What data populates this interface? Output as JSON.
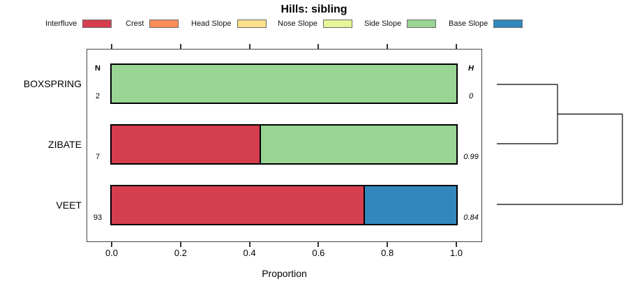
{
  "title": "Hills: sibling",
  "legend": {
    "items": [
      {
        "label": "Interfluve",
        "color": "#D53E4F"
      },
      {
        "label": "Crest",
        "color": "#FC8D59"
      },
      {
        "label": "Head Slope",
        "color": "#FEE08B"
      },
      {
        "label": "Nose Slope",
        "color": "#E6F598"
      },
      {
        "label": "Side Slope",
        "color": "#99D594"
      },
      {
        "label": "Base Slope",
        "color": "#3288BD"
      }
    ]
  },
  "columns": {
    "n_header": "N",
    "h_header": "H"
  },
  "axis": {
    "label": "Proportion",
    "tick_labels": [
      "0.0",
      "0.2",
      "0.4",
      "0.6",
      "0.8",
      "1.0"
    ]
  },
  "chart_data": {
    "type": "bar",
    "orientation": "horizontal-stacked",
    "title": "Hills: sibling",
    "xlabel": "Proportion",
    "xlim": [
      0,
      1
    ],
    "xticks": [
      0,
      0.2,
      0.4,
      0.6,
      0.8,
      1
    ],
    "grid": false,
    "legend_position": "top",
    "categories": [
      "Interfluve",
      "Crest",
      "Head Slope",
      "Nose Slope",
      "Side Slope",
      "Base Slope"
    ],
    "palette": {
      "Interfluve": "#D53E4F",
      "Crest": "#FC8D59",
      "Head Slope": "#FEE08B",
      "Nose Slope": "#E6F598",
      "Side Slope": "#99D594",
      "Base Slope": "#3288BD"
    },
    "rows": [
      {
        "label": "BOXSPRING",
        "n": "2",
        "h": "0",
        "segments": [
          {
            "category": "Side Slope",
            "value": 1.0
          }
        ]
      },
      {
        "label": "ZIBATE",
        "n": "7",
        "h": "0.99",
        "segments": [
          {
            "category": "Interfluve",
            "value": 0.43
          },
          {
            "category": "Side Slope",
            "value": 0.57
          }
        ]
      },
      {
        "label": "VEET",
        "n": "93",
        "h": "0.84",
        "segments": [
          {
            "category": "Interfluve",
            "value": 0.73
          },
          {
            "category": "Base Slope",
            "value": 0.27
          }
        ]
      }
    ],
    "dendrogram": {
      "structure": "((BOXSPRING,ZIBATE),VEET)",
      "segments": [
        [
          712,
          121,
          799,
          121
        ],
        [
          712,
          206,
          799,
          206
        ],
        [
          799,
          121,
          799,
          206
        ],
        [
          799,
          163.5,
          892,
          163.5
        ],
        [
          892,
          163.5,
          892,
          293
        ],
        [
          712,
          293,
          892,
          293
        ]
      ]
    }
  }
}
